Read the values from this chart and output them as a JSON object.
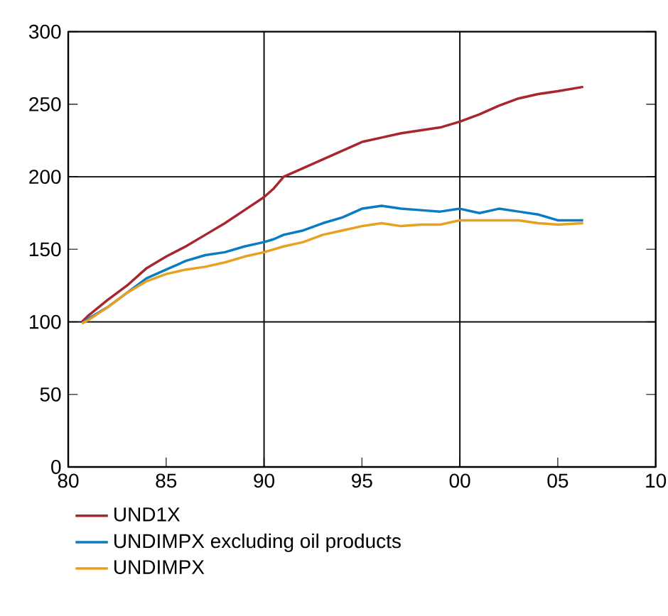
{
  "chart_data": {
    "type": "line",
    "xlim": [
      1980,
      2010
    ],
    "ylim": [
      0,
      300
    ],
    "xticks": [
      {
        "value": 1980,
        "label": "80"
      },
      {
        "value": 1985,
        "label": "85"
      },
      {
        "value": 1990,
        "label": "90"
      },
      {
        "value": 1995,
        "label": "95"
      },
      {
        "value": 2000,
        "label": "00"
      },
      {
        "value": 2005,
        "label": "05"
      },
      {
        "value": 2010,
        "label": "10"
      }
    ],
    "yticks": [
      0,
      50,
      100,
      150,
      200,
      250,
      300
    ],
    "legend": "bottom",
    "grid": false,
    "marker": "none",
    "line_style": "solid",
    "ref_lines": [
      {
        "axis": "y",
        "value": 100,
        "color": "#000000"
      },
      {
        "axis": "y",
        "value": 200,
        "color": "#000000"
      },
      {
        "axis": "x",
        "value": 1990,
        "color": "#000000"
      },
      {
        "axis": "x",
        "value": 2000,
        "color": "#000000"
      }
    ],
    "x": [
      1980.7,
      1981,
      1982,
      1983,
      1984,
      1985,
      1986,
      1987,
      1988,
      1989,
      1990,
      1990.5,
      1991,
      1992,
      1993,
      1994,
      1995,
      1996,
      1997,
      1998,
      1999,
      2000,
      2001,
      2002,
      2003,
      2004,
      2005,
      2006.3
    ],
    "series": [
      {
        "name": "UND1X",
        "color": "#a8262e",
        "values": [
          100,
          104,
          115,
          125,
          137,
          145,
          152,
          160,
          168,
          177,
          186,
          192,
          200,
          206,
          212,
          218,
          224,
          227,
          230,
          232,
          234,
          238,
          243,
          249,
          254,
          257,
          259,
          262
        ]
      },
      {
        "name": "UNDIMPX excluding oil products",
        "color": "#0a7cc1",
        "values": [
          99,
          102,
          110,
          120,
          130,
          136,
          142,
          146,
          148,
          152,
          155,
          157,
          160,
          163,
          168,
          172,
          178,
          180,
          178,
          177,
          176,
          178,
          175,
          178,
          176,
          174,
          170,
          170
        ]
      },
      {
        "name": "UNDIMPX",
        "color": "#e8a020",
        "values": [
          99,
          101,
          110,
          120,
          128,
          133,
          136,
          138,
          141,
          145,
          148,
          150,
          152,
          155,
          160,
          163,
          166,
          168,
          166,
          167,
          167,
          170,
          170,
          170,
          170,
          168,
          167,
          168
        ]
      }
    ]
  }
}
